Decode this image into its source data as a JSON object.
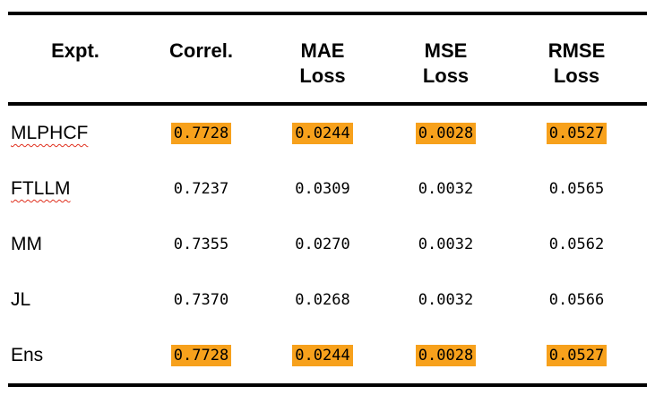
{
  "table": {
    "headers": [
      "Expt.",
      "Correl.",
      "MAE\nLoss",
      "MSE\nLoss",
      "RMSE\nLoss"
    ],
    "rows": [
      {
        "label": "MLPHCF",
        "values": [
          "0.7728",
          "0.0244",
          "0.0028",
          "0.0527"
        ],
        "highlighted": true,
        "spellcheck_underline": true
      },
      {
        "label": "FTLLM",
        "values": [
          "0.7237",
          "0.0309",
          "0.0032",
          "0.0565"
        ],
        "highlighted": false,
        "spellcheck_underline": true
      },
      {
        "label": "MM",
        "values": [
          "0.7355",
          "0.0270",
          "0.0032",
          "0.0562"
        ],
        "highlighted": false,
        "spellcheck_underline": false
      },
      {
        "label": "JL",
        "values": [
          "0.7370",
          "0.0268",
          "0.0032",
          "0.0566"
        ],
        "highlighted": false,
        "spellcheck_underline": false
      },
      {
        "label": "Ens",
        "values": [
          "0.7728",
          "0.0244",
          "0.0028",
          "0.0527"
        ],
        "highlighted": true,
        "spellcheck_underline": false
      }
    ],
    "highlight_color": "#F7A11C",
    "spellcheck_color": "#E0301E"
  }
}
